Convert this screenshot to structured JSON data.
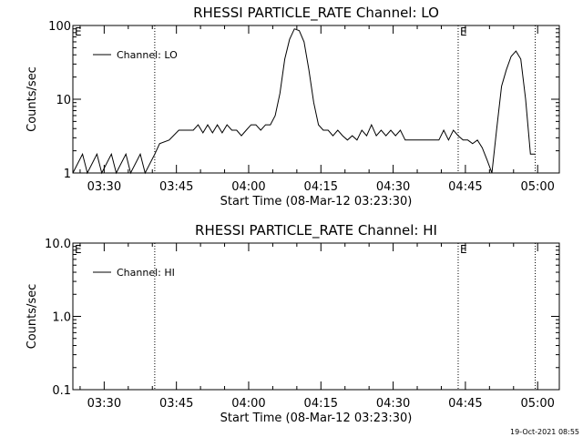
{
  "footer": {
    "timestamp": "19-Oct-2021 08:55"
  },
  "chart_data": [
    {
      "type": "line",
      "title": "RHESSI PARTICLE_RATE Channel: LO",
      "xlabel": "Start Time (08-Mar-12 03:23:30)",
      "ylabel": "Counts/sec",
      "yscale": "log",
      "xlim": [
        "03:23:30",
        "05:04:30"
      ],
      "ylim": [
        1,
        100
      ],
      "x_ticks": [
        "03:30",
        "03:45",
        "04:00",
        "04:15",
        "04:30",
        "04:45",
        "05:00"
      ],
      "y_ticks": [
        "1",
        "10",
        "100"
      ],
      "grid": false,
      "legend_position": "top-left",
      "event_lines": [
        "03:40:30",
        "04:43:30",
        "04:59:30"
      ],
      "event_markers": [
        {
          "label": "E",
          "x": "03:23:30"
        },
        {
          "label": "E",
          "x": "04:43:30"
        }
      ],
      "series": [
        {
          "name": "Channel: LO",
          "color": "#000000",
          "x": [
            "03:23:30",
            "03:25:30",
            "03:26:30",
            "03:28:30",
            "03:29:30",
            "03:31:30",
            "03:32:30",
            "03:34:30",
            "03:35:30",
            "03:37:30",
            "03:38:30",
            "03:40:30",
            "03:41:30",
            "03:43:30",
            "03:45:30",
            "03:47:30",
            "03:48:30",
            "03:49:30",
            "03:50:30",
            "03:51:30",
            "03:52:30",
            "03:53:30",
            "03:54:30",
            "03:55:30",
            "03:56:30",
            "03:57:30",
            "03:58:30",
            "03:59:30",
            "04:00:30",
            "04:01:30",
            "04:02:30",
            "04:03:30",
            "04:04:30",
            "04:05:30",
            "04:06:30",
            "04:07:30",
            "04:08:30",
            "04:09:30",
            "04:10:30",
            "04:11:30",
            "04:12:30",
            "04:13:30",
            "04:14:30",
            "04:15:30",
            "04:16:30",
            "04:17:30",
            "04:18:30",
            "04:19:30",
            "04:20:30",
            "04:21:30",
            "04:22:30",
            "04:23:30",
            "04:24:30",
            "04:25:30",
            "04:26:30",
            "04:27:30",
            "04:28:30",
            "04:29:30",
            "04:30:30",
            "04:31:30",
            "04:32:30",
            "04:34:30",
            "04:36:30",
            "04:38:30",
            "04:39:30",
            "04:40:30",
            "04:41:30",
            "04:42:30",
            "04:43:30",
            "04:44:30",
            "04:45:30",
            "04:46:30",
            "04:47:30",
            "04:48:30",
            "04:49:30",
            "04:50:30",
            "04:51:30",
            "04:52:30",
            "04:53:30",
            "04:54:30",
            "04:55:30",
            "04:56:30",
            "04:57:30",
            "04:58:30",
            "04:59:30"
          ],
          "values": [
            1,
            1.8,
            1,
            1.8,
            1,
            1.8,
            1,
            1.8,
            1,
            1.8,
            1,
            1.8,
            2.5,
            2.8,
            3.8,
            3.8,
            3.8,
            4.5,
            3.5,
            4.5,
            3.5,
            4.5,
            3.5,
            4.5,
            3.8,
            3.8,
            3.2,
            3.8,
            4.5,
            4.5,
            3.8,
            4.5,
            4.5,
            6,
            12,
            35,
            65,
            90,
            85,
            60,
            25,
            9,
            4.5,
            3.8,
            3.8,
            3.2,
            3.8,
            3.2,
            2.8,
            3.2,
            2.8,
            3.8,
            3.2,
            4.5,
            3.2,
            3.8,
            3.2,
            3.8,
            3.2,
            3.8,
            2.8,
            2.8,
            2.8,
            2.8,
            2.8,
            3.8,
            2.8,
            3.8,
            3.2,
            2.8,
            2.8,
            2.5,
            2.8,
            2.2,
            1.5,
            1,
            4,
            15,
            25,
            38,
            45,
            35,
            10,
            1.8,
            1.8
          ]
        }
      ]
    },
    {
      "type": "line",
      "title": "RHESSI PARTICLE_RATE Channel: HI",
      "xlabel": "Start Time (08-Mar-12 03:23:30)",
      "ylabel": "Counts/sec",
      "yscale": "log",
      "xlim": [
        "03:23:30",
        "05:04:30"
      ],
      "ylim": [
        0.1,
        10
      ],
      "x_ticks": [
        "03:30",
        "03:45",
        "04:00",
        "04:15",
        "04:30",
        "04:45",
        "05:00"
      ],
      "y_ticks": [
        "0.1",
        "1.0",
        "10.0"
      ],
      "grid": false,
      "legend_position": "top-left",
      "event_lines": [
        "03:40:30",
        "04:43:30",
        "04:59:30"
      ],
      "event_markers": [
        {
          "label": "E",
          "x": "03:23:30"
        },
        {
          "label": "E",
          "x": "04:43:30"
        }
      ],
      "series": [
        {
          "name": "Channel: HI",
          "color": "#000000",
          "x": [],
          "values": []
        }
      ]
    }
  ]
}
